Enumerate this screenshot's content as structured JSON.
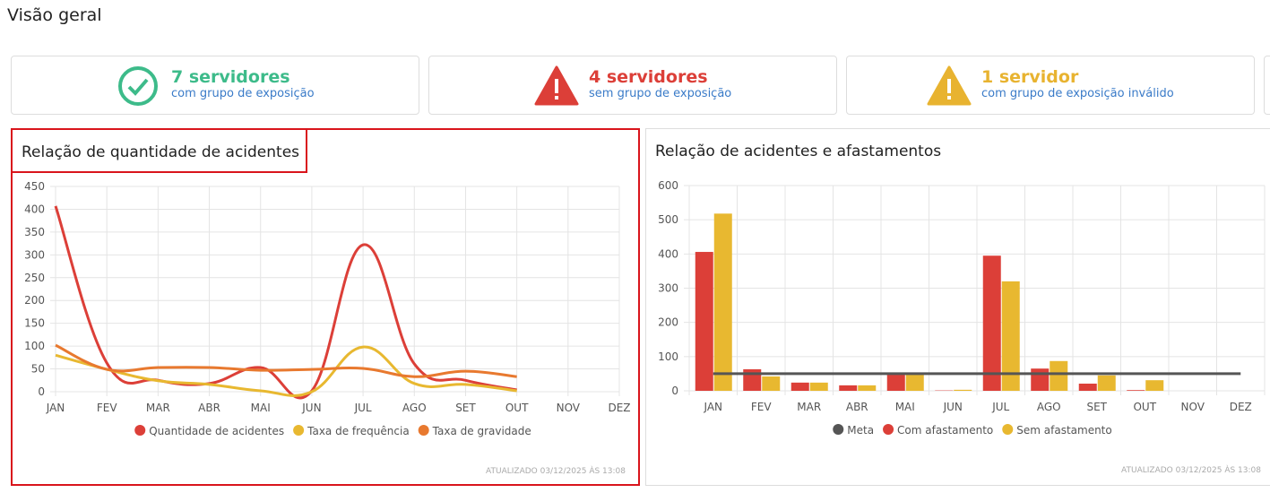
{
  "header": {
    "title": "Visão geral"
  },
  "cards": [
    {
      "title": "7 servidores",
      "subtitle": "com grupo de exposição",
      "color": "#3dbb8a"
    },
    {
      "title": "4 servidores",
      "subtitle": "sem grupo de exposição",
      "color": "#dc3f38"
    },
    {
      "title": "1 servidor",
      "subtitle": "com grupo de exposição inválido",
      "color": "#e8b330"
    }
  ],
  "chart_data": [
    {
      "type": "line",
      "title": "Relação de quantidade de acidentes",
      "categories": [
        "JAN",
        "FEV",
        "MAR",
        "ABR",
        "MAI",
        "JUN",
        "JUL",
        "AGO",
        "SET",
        "OUT",
        "NOV",
        "DEZ"
      ],
      "series": [
        {
          "name": "Quantidade de acidentes",
          "color": "#dc3f38",
          "values": [
            407,
            63,
            25,
            18,
            53,
            2,
            322,
            61,
            25,
            4,
            null,
            null
          ]
        },
        {
          "name": "Taxa de frequência",
          "color": "#e8b830",
          "values": [
            80,
            49,
            24,
            16,
            2,
            0,
            98,
            18,
            16,
            2,
            null,
            null
          ]
        },
        {
          "name": "Taxa de gravidade",
          "color": "#e8792f",
          "values": [
            102,
            49,
            53,
            53,
            47,
            49,
            51,
            33,
            45,
            33,
            null,
            null
          ]
        }
      ],
      "ylim": [
        0,
        450
      ],
      "yticks": [
        0,
        50,
        100,
        150,
        200,
        250,
        300,
        350,
        400,
        450
      ],
      "grid": true,
      "updated": "ATUALIZADO 03/12/2025 ÀS 13:08"
    },
    {
      "type": "bar",
      "title": "Relação de acidentes e afastamentos",
      "categories": [
        "JAN",
        "FEV",
        "MAR",
        "ABR",
        "MAI",
        "JUN",
        "JUL",
        "AGO",
        "SET",
        "OUT",
        "NOV",
        "DEZ"
      ],
      "series": [
        {
          "name": "Meta",
          "type": "line",
          "color": "#555555",
          "values": [
            50,
            50,
            50,
            50,
            50,
            50,
            50,
            50,
            50,
            50,
            50,
            50
          ]
        },
        {
          "name": "Com afastamento",
          "type": "bar",
          "color": "#dc3f38",
          "values": [
            406,
            63,
            24,
            16,
            47,
            1,
            395,
            65,
            21,
            2,
            null,
            null
          ]
        },
        {
          "name": "Sem afastamento",
          "type": "bar",
          "color": "#e8b830",
          "values": [
            518,
            42,
            24,
            16,
            47,
            3,
            320,
            87,
            45,
            31,
            null,
            null
          ]
        }
      ],
      "ylim": [
        0,
        600
      ],
      "yticks": [
        0,
        100,
        200,
        300,
        400,
        500,
        600
      ],
      "grid": true,
      "updated": "ATUALIZADO 03/12/2025 ÀS 13:08"
    }
  ]
}
